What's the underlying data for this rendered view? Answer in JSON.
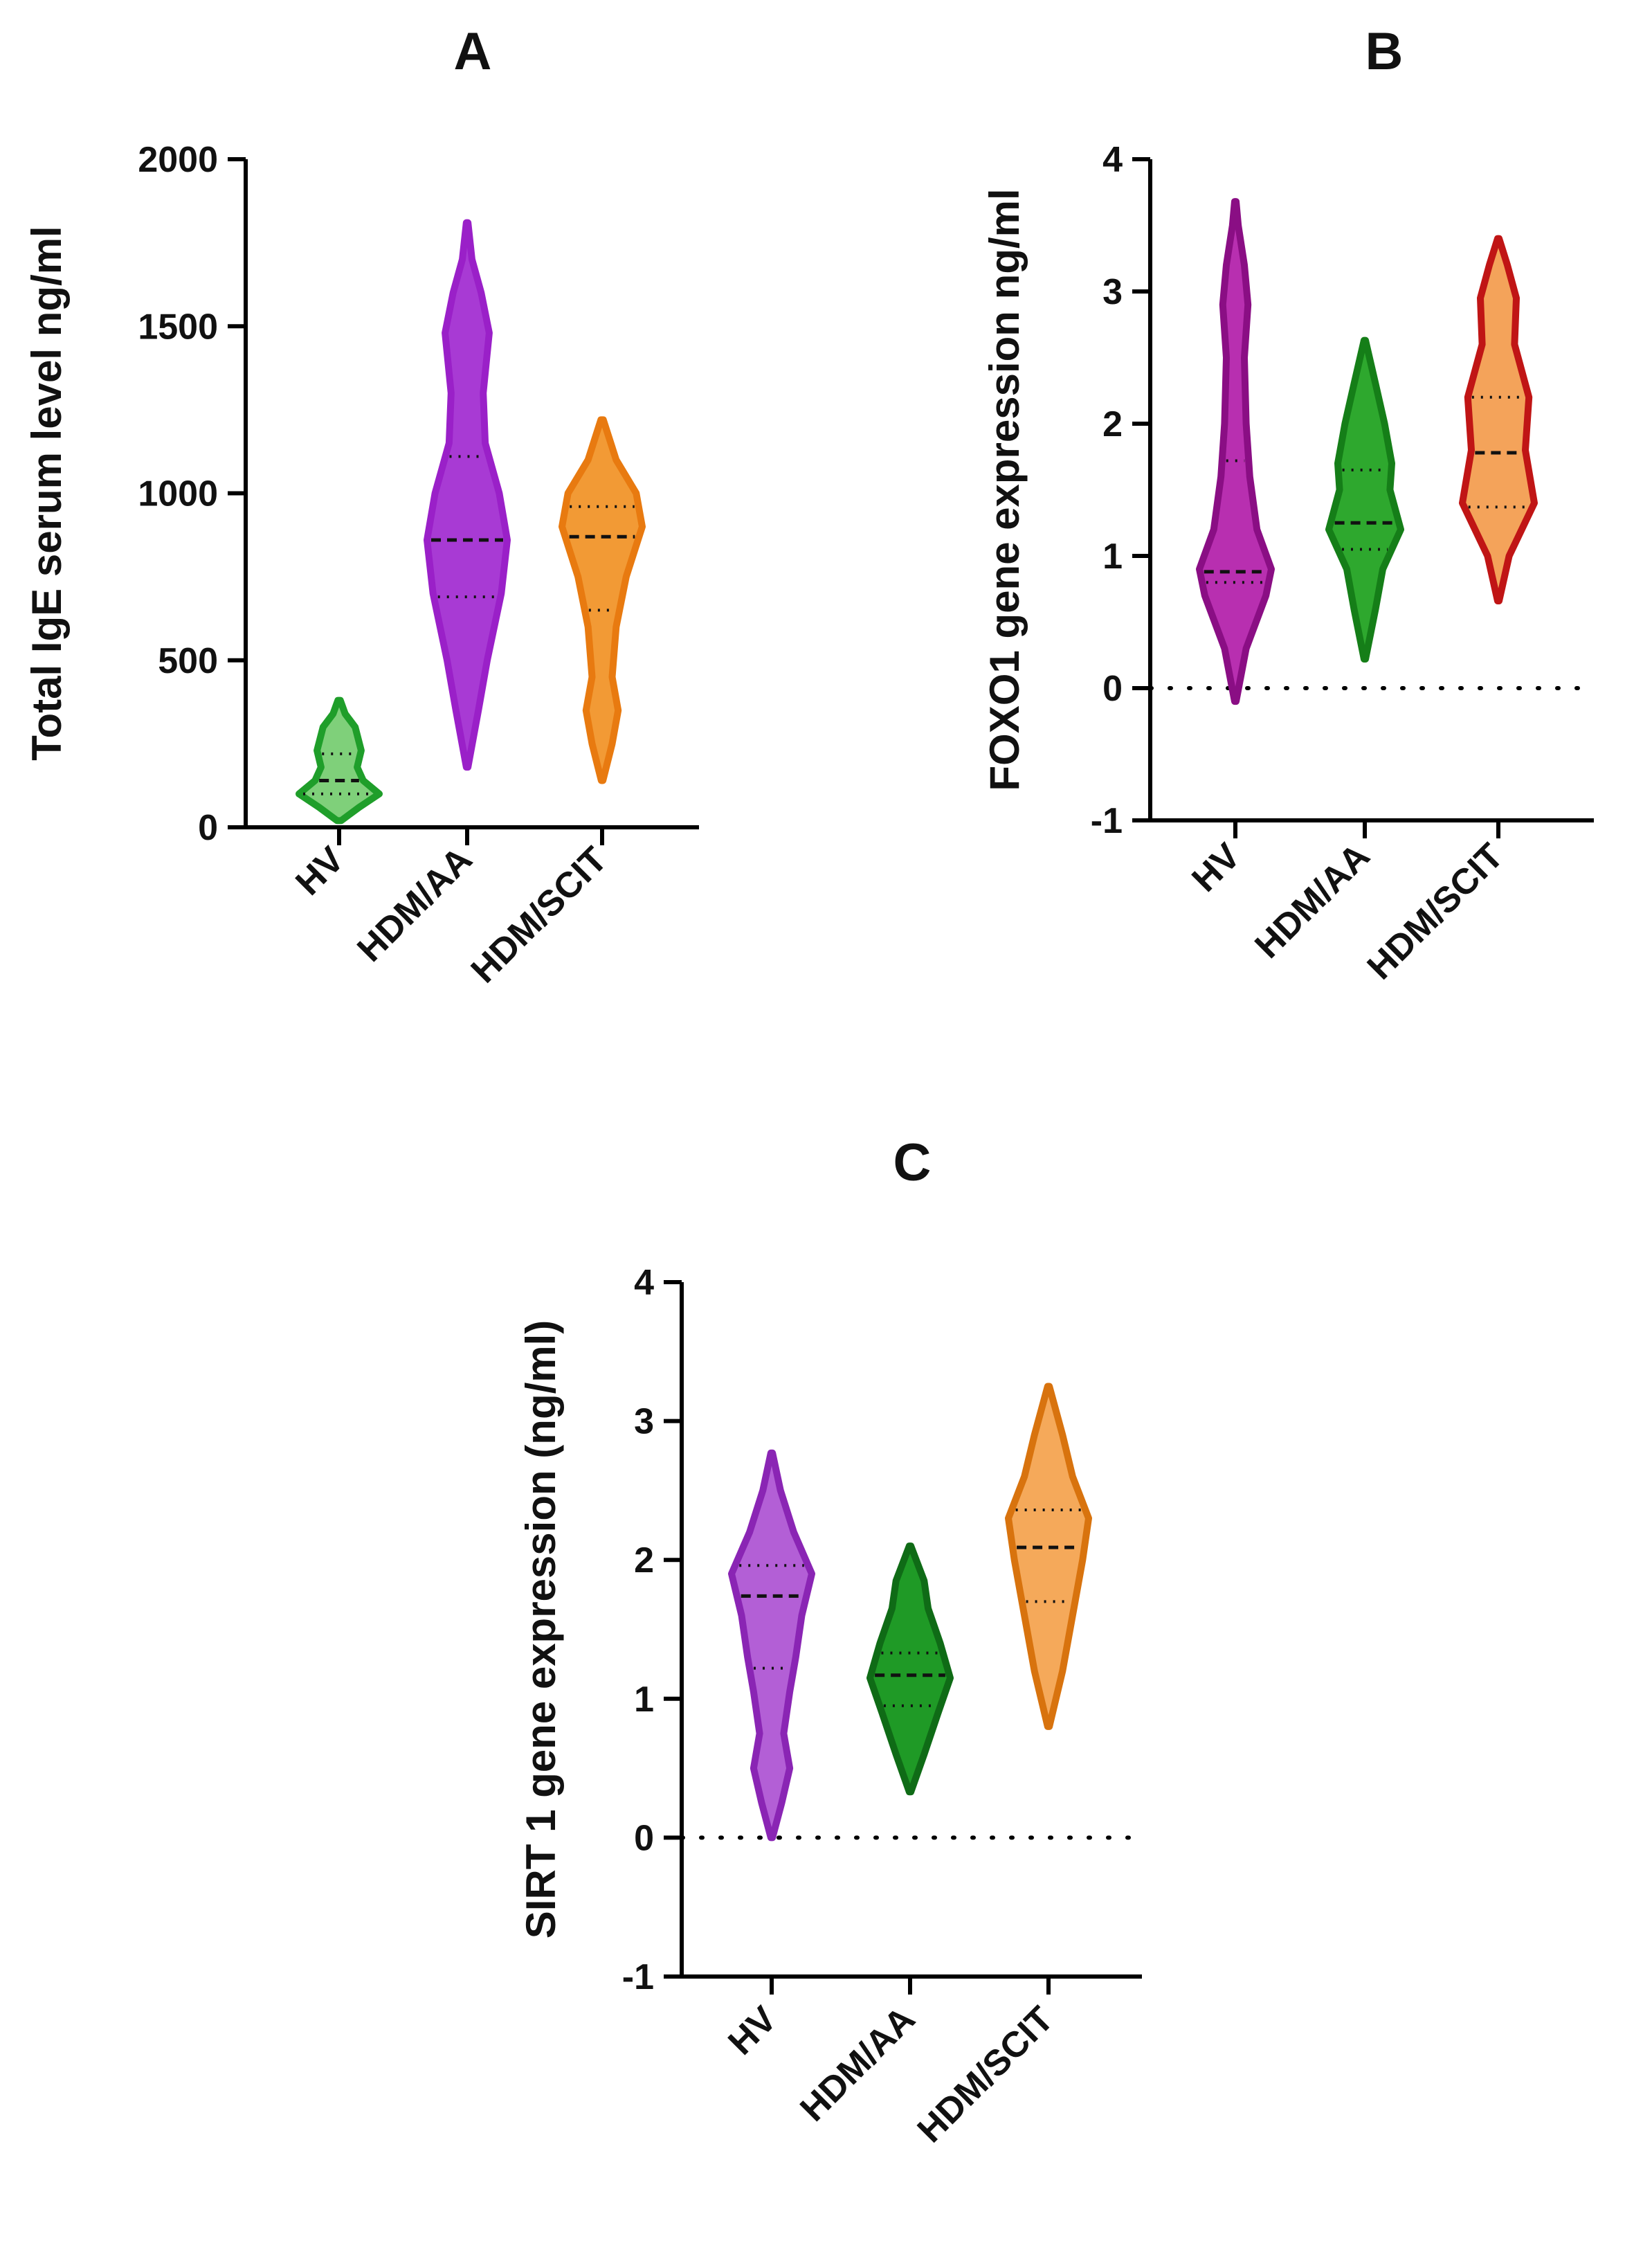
{
  "figure": {
    "panel_letters": [
      "A",
      "B",
      "C"
    ]
  },
  "chart_data": [
    {
      "type": "violin",
      "panel": "A",
      "title": "A",
      "xlabel": "",
      "ylabel": "Total IgE serum level ng/ml",
      "ylim": [
        0,
        2000
      ],
      "yticks": [
        0,
        500,
        1000,
        1500,
        2000
      ],
      "categories": [
        "HV",
        "HDM/AA",
        "HDM/SCIT"
      ],
      "series": [
        {
          "category": "HV",
          "color": "#1f9e2a",
          "fill": "#7fd07a",
          "min": 20,
          "max": 380,
          "q1": 100,
          "median": 140,
          "q3": 220,
          "density": [
            [
              20,
              0.05
            ],
            [
              60,
              0.5
            ],
            [
              100,
              1.0
            ],
            [
              140,
              0.6
            ],
            [
              180,
              0.45
            ],
            [
              230,
              0.55
            ],
            [
              300,
              0.4
            ],
            [
              340,
              0.15
            ],
            [
              380,
              0.03
            ]
          ]
        },
        {
          "category": "HDM/AA",
          "color": "#9a20c8",
          "fill": "#a83ad4",
          "min": 180,
          "max": 1810,
          "q1": 690,
          "median": 860,
          "q3": 1110,
          "density": [
            [
              180,
              0.02
            ],
            [
              350,
              0.28
            ],
            [
              500,
              0.5
            ],
            [
              700,
              0.85
            ],
            [
              860,
              1.0
            ],
            [
              1000,
              0.8
            ],
            [
              1150,
              0.45
            ],
            [
              1300,
              0.4
            ],
            [
              1480,
              0.55
            ],
            [
              1600,
              0.35
            ],
            [
              1700,
              0.12
            ],
            [
              1810,
              0.02
            ]
          ]
        },
        {
          "category": "HDM/SCIT",
          "color": "#e87a10",
          "fill": "#f29a35",
          "min": 140,
          "max": 1220,
          "q1": 650,
          "median": 870,
          "q3": 960,
          "density": [
            [
              140,
              0.02
            ],
            [
              250,
              0.25
            ],
            [
              350,
              0.4
            ],
            [
              450,
              0.25
            ],
            [
              600,
              0.35
            ],
            [
              750,
              0.6
            ],
            [
              900,
              1.0
            ],
            [
              1000,
              0.85
            ],
            [
              1100,
              0.35
            ],
            [
              1220,
              0.03
            ]
          ]
        }
      ]
    },
    {
      "type": "violin",
      "panel": "B",
      "title": "B",
      "xlabel": "",
      "ylabel": "FOXO1 gene expression ng/ml",
      "ylim": [
        -1,
        4
      ],
      "yticks": [
        -1,
        0,
        1,
        2,
        3,
        4
      ],
      "reference_line": 0,
      "categories": [
        "HV",
        "HDM/AA",
        "HDM/SCIT"
      ],
      "series": [
        {
          "category": "HV",
          "color": "#8a0e84",
          "fill": "#b82fb0",
          "min": -0.1,
          "max": 3.68,
          "q1": 0.8,
          "median": 0.88,
          "q3": 1.72,
          "density": [
            [
              -0.1,
              0.02
            ],
            [
              0.3,
              0.3
            ],
            [
              0.7,
              0.85
            ],
            [
              0.9,
              1.0
            ],
            [
              1.2,
              0.6
            ],
            [
              1.6,
              0.4
            ],
            [
              2.0,
              0.3
            ],
            [
              2.5,
              0.25
            ],
            [
              2.9,
              0.35
            ],
            [
              3.2,
              0.25
            ],
            [
              3.5,
              0.08
            ],
            [
              3.68,
              0.02
            ]
          ]
        },
        {
          "category": "HDM/AA",
          "color": "#157e18",
          "fill": "#2ea82e",
          "min": 0.22,
          "max": 2.63,
          "q1": 1.05,
          "median": 1.25,
          "q3": 1.65,
          "density": [
            [
              0.22,
              0.02
            ],
            [
              0.6,
              0.3
            ],
            [
              0.9,
              0.5
            ],
            [
              1.2,
              1.0
            ],
            [
              1.5,
              0.7
            ],
            [
              1.7,
              0.75
            ],
            [
              2.0,
              0.55
            ],
            [
              2.3,
              0.3
            ],
            [
              2.63,
              0.02
            ]
          ]
        },
        {
          "category": "HDM/SCIT",
          "color": "#c01515",
          "fill": "#f4a35a",
          "min": 0.66,
          "max": 3.4,
          "q1": 1.37,
          "median": 1.78,
          "q3": 2.2,
          "density": [
            [
              0.66,
              0.02
            ],
            [
              1.0,
              0.3
            ],
            [
              1.4,
              1.0
            ],
            [
              1.8,
              0.75
            ],
            [
              2.2,
              0.85
            ],
            [
              2.6,
              0.45
            ],
            [
              2.95,
              0.5
            ],
            [
              3.2,
              0.25
            ],
            [
              3.4,
              0.02
            ]
          ]
        }
      ]
    },
    {
      "type": "violin",
      "panel": "C",
      "title": "C",
      "xlabel": "",
      "ylabel": "SIRT 1 gene expression (ng/ml)",
      "ylim": [
        -1,
        4
      ],
      "yticks": [
        -1,
        0,
        1,
        2,
        3,
        4
      ],
      "reference_line": 0,
      "categories": [
        "HV",
        "HDM/AA",
        "HDM/SCIT"
      ],
      "series": [
        {
          "category": "HV",
          "color": "#8a25b4",
          "fill": "#b35fd6",
          "min": 0.0,
          "max": 2.77,
          "q1": 1.22,
          "median": 1.74,
          "q3": 1.96,
          "density": [
            [
              0.0,
              0.02
            ],
            [
              0.25,
              0.25
            ],
            [
              0.5,
              0.45
            ],
            [
              0.75,
              0.3
            ],
            [
              1.05,
              0.45
            ],
            [
              1.3,
              0.6
            ],
            [
              1.6,
              0.75
            ],
            [
              1.9,
              1.0
            ],
            [
              2.2,
              0.55
            ],
            [
              2.5,
              0.22
            ],
            [
              2.77,
              0.02
            ]
          ]
        },
        {
          "category": "HDM/AA",
          "color": "#0f6b16",
          "fill": "#1f9a26",
          "min": 0.33,
          "max": 2.1,
          "q1": 0.95,
          "median": 1.17,
          "q3": 1.33,
          "density": [
            [
              0.33,
              0.02
            ],
            [
              0.6,
              0.35
            ],
            [
              0.9,
              0.7
            ],
            [
              1.15,
              1.0
            ],
            [
              1.4,
              0.75
            ],
            [
              1.65,
              0.45
            ],
            [
              1.85,
              0.35
            ],
            [
              2.1,
              0.02
            ]
          ]
        },
        {
          "category": "HDM/SCIT",
          "color": "#d8730e",
          "fill": "#f5a95a",
          "min": 0.8,
          "max": 3.25,
          "q1": 1.7,
          "median": 2.09,
          "q3": 2.36,
          "density": [
            [
              0.8,
              0.02
            ],
            [
              1.2,
              0.35
            ],
            [
              1.6,
              0.6
            ],
            [
              2.0,
              0.85
            ],
            [
              2.3,
              1.0
            ],
            [
              2.6,
              0.6
            ],
            [
              2.9,
              0.35
            ],
            [
              3.25,
              0.02
            ]
          ]
        }
      ]
    }
  ]
}
